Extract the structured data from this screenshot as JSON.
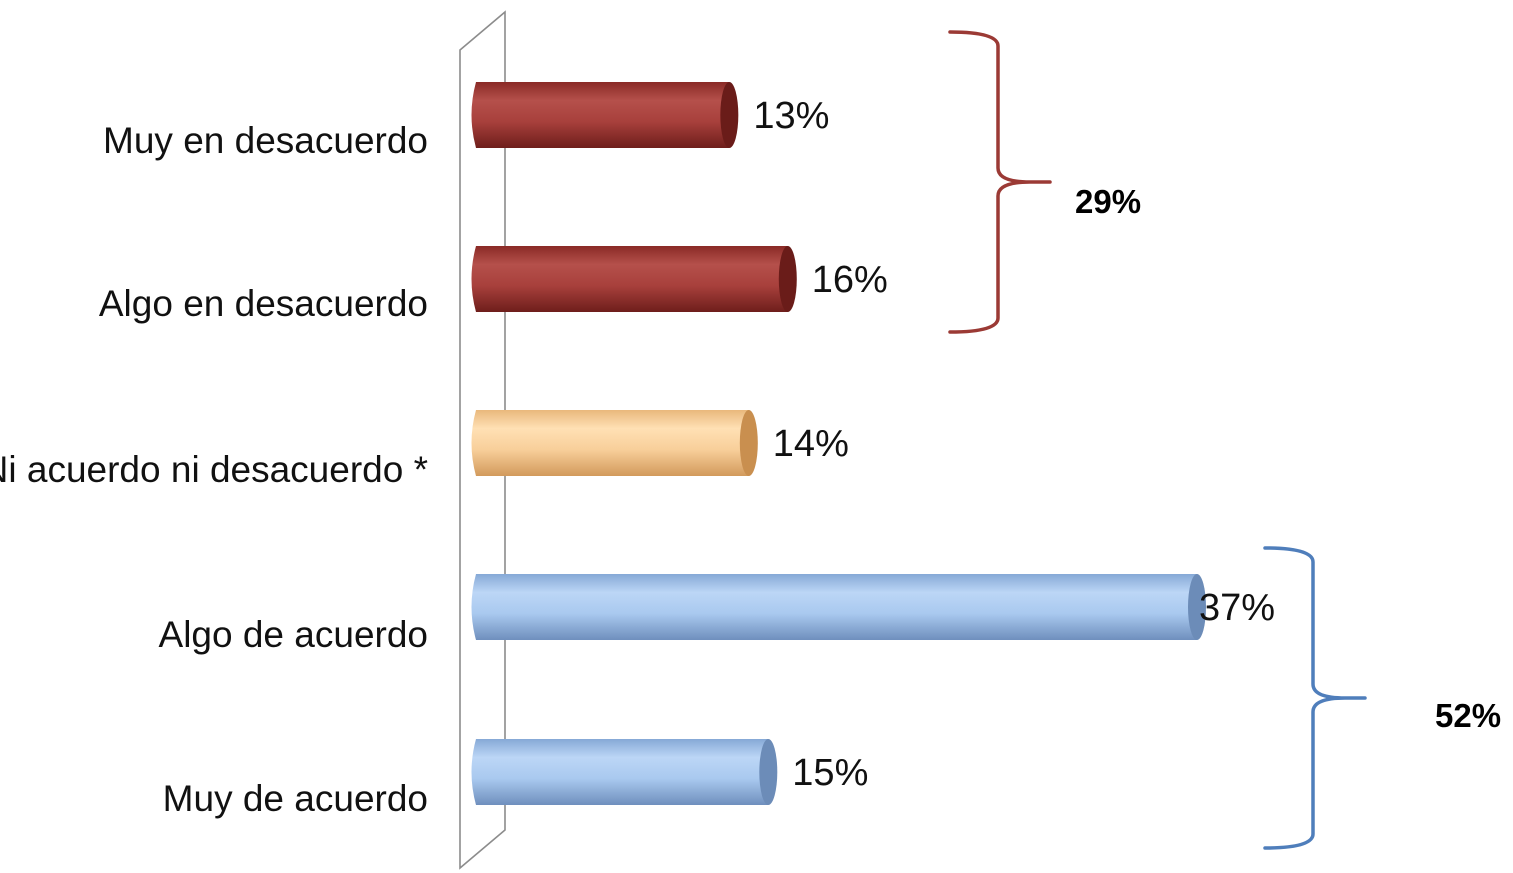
{
  "chart_data": {
    "type": "bar",
    "orientation": "horizontal",
    "style": "3d-cylinder",
    "title": "",
    "xlabel": "",
    "ylabel": "",
    "xlim": [
      0,
      37
    ],
    "grid": false,
    "legend": "none",
    "categories": [
      "Muy en desacuerdo",
      "Algo en desacuerdo",
      "Ni acuerdo ni desacuerdo *",
      "Algo de acuerdo",
      "Muy de acuerdo"
    ],
    "values": [
      13,
      16,
      14,
      37,
      15
    ],
    "data_labels": [
      "13%",
      "16%",
      "14%",
      "37%",
      "15%"
    ],
    "bar_colors": [
      "#a8403c",
      "#a8403c",
      "#f8cf9a",
      "#a9c9ef",
      "#a9c9ef"
    ],
    "groups": [
      {
        "label": "29%",
        "from_index": 0,
        "to_index": 1,
        "color": "#9b3a35"
      },
      {
        "label": "52%",
        "from_index": 3,
        "to_index": 4,
        "color": "#4f7ebb"
      }
    ]
  }
}
